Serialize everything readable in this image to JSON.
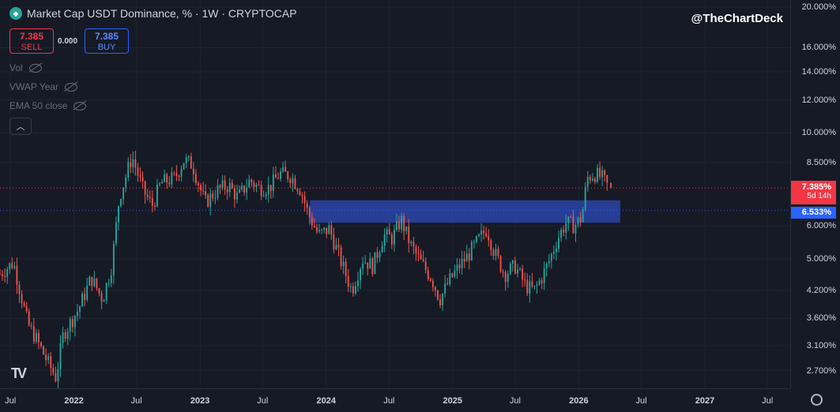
{
  "header": {
    "title": "Market Cap USDT Dominance, % · 1W · CRYPTOCAP",
    "symbol_icon": "diamond-icon"
  },
  "trade": {
    "sell_price": "7.385",
    "sell_label": "SELL",
    "spread": "0.000",
    "buy_price": "7.385",
    "buy_label": "BUY"
  },
  "indicators": [
    {
      "label": "Vol",
      "icon": "eye-off-icon"
    },
    {
      "label": "VWAP Year",
      "icon": "eye-off-icon"
    },
    {
      "label": "EMA 50 close",
      "icon": "eye-off-icon"
    }
  ],
  "watermark": "@TheChartDeck",
  "branding": "TV",
  "price_axis": {
    "current_price": "7.385%",
    "countdown": "5d 14h",
    "line_price": "6.533%"
  },
  "colors": {
    "up": "#26a69a",
    "down": "#ef5350",
    "zone": "#2a45a8",
    "current_price": "#f23645",
    "line_price": "#2962ff",
    "background": "#161a25"
  },
  "chart_data": {
    "type": "candlestick",
    "scale": "log",
    "ylim": [
      2.45,
      20.8
    ],
    "xlim": [
      "2021-06-01",
      "2027-09-05"
    ],
    "yticks": [
      "2.700%",
      "3.100%",
      "3.600%",
      "4.200%",
      "5.000%",
      "6.000%",
      "8.500%",
      "10.000%",
      "12.000%",
      "14.000%",
      "16.000%",
      "20.000%"
    ],
    "ytick_values": [
      2.7,
      3.1,
      3.6,
      4.2,
      5.0,
      6.0,
      8.5,
      10.0,
      12.0,
      14.0,
      16.0,
      20.0
    ],
    "xticks": [
      {
        "label": "Jul",
        "date": "2021-07-01",
        "year": false
      },
      {
        "label": "2022",
        "date": "2022-01-01",
        "year": true
      },
      {
        "label": "Jul",
        "date": "2022-07-01",
        "year": false
      },
      {
        "label": "2023",
        "date": "2023-01-01",
        "year": true
      },
      {
        "label": "Jul",
        "date": "2023-07-01",
        "year": false
      },
      {
        "label": "2024",
        "date": "2024-01-01",
        "year": true
      },
      {
        "label": "Jul",
        "date": "2024-07-01",
        "year": false
      },
      {
        "label": "2025",
        "date": "2025-01-01",
        "year": true
      },
      {
        "label": "Jul",
        "date": "2025-07-01",
        "year": false
      },
      {
        "label": "2026",
        "date": "2026-01-01",
        "year": true
      },
      {
        "label": "Jul",
        "date": "2026-07-01",
        "year": false
      },
      {
        "label": "2027",
        "date": "2027-01-01",
        "year": true
      },
      {
        "label": "Jul",
        "date": "2027-07-01",
        "year": false
      }
    ],
    "close_path": [
      [
        "2021-06-01",
        4.6
      ],
      [
        "2021-07-10",
        4.9
      ],
      [
        "2021-08-20",
        3.5
      ],
      [
        "2021-09-15",
        3.2
      ],
      [
        "2021-10-20",
        2.8
      ],
      [
        "2021-11-10",
        2.6
      ],
      [
        "2021-12-01",
        3.3
      ],
      [
        "2022-01-15",
        3.8
      ],
      [
        "2022-02-20",
        4.5
      ],
      [
        "2022-03-25",
        4.0
      ],
      [
        "2022-04-20",
        4.8
      ],
      [
        "2022-05-12",
        7.0
      ],
      [
        "2022-06-18",
        8.8
      ],
      [
        "2022-07-20",
        7.3
      ],
      [
        "2022-08-15",
        6.7
      ],
      [
        "2022-09-10",
        7.6
      ],
      [
        "2022-10-20",
        7.8
      ],
      [
        "2022-11-15",
        8.6
      ],
      [
        "2022-12-10",
        8.4
      ],
      [
        "2023-01-15",
        6.8
      ],
      [
        "2023-02-20",
        7.3
      ],
      [
        "2023-03-25",
        7.5
      ],
      [
        "2023-04-20",
        7.0
      ],
      [
        "2023-05-25",
        7.7
      ],
      [
        "2023-06-20",
        7.4
      ],
      [
        "2023-07-20",
        7.4
      ],
      [
        "2023-08-20",
        8.0
      ],
      [
        "2023-09-20",
        7.9
      ],
      [
        "2023-10-20",
        7.3
      ],
      [
        "2023-11-10",
        6.4
      ],
      [
        "2023-12-10",
        5.7
      ],
      [
        "2024-01-10",
        5.9
      ],
      [
        "2024-02-10",
        5.0
      ],
      [
        "2024-03-15",
        4.2
      ],
      [
        "2024-04-15",
        5.0
      ],
      [
        "2024-05-15",
        4.8
      ],
      [
        "2024-06-15",
        5.7
      ],
      [
        "2024-07-10",
        5.6
      ],
      [
        "2024-08-05",
        6.2
      ],
      [
        "2024-09-01",
        5.4
      ],
      [
        "2024-10-01",
        4.9
      ],
      [
        "2024-11-01",
        4.5
      ],
      [
        "2024-11-25",
        4.0
      ],
      [
        "2024-12-20",
        4.4
      ],
      [
        "2025-01-20",
        4.8
      ],
      [
        "2025-02-15",
        5.1
      ],
      [
        "2025-03-20",
        5.6
      ],
      [
        "2025-04-10",
        5.9
      ],
      [
        "2025-05-01",
        5.2
      ],
      [
        "2025-06-01",
        4.6
      ],
      [
        "2025-07-01",
        4.8
      ],
      [
        "2025-08-01",
        4.3
      ],
      [
        "2025-08-25",
        4.2
      ],
      [
        "2025-09-15",
        4.5
      ],
      [
        "2025-10-10",
        5.0
      ],
      [
        "2025-11-01",
        5.6
      ],
      [
        "2025-11-25",
        6.1
      ],
      [
        "2025-12-20",
        6.0
      ],
      [
        "2026-01-10",
        6.3
      ],
      [
        "2026-01-25",
        7.8
      ],
      [
        "2026-02-15",
        8.0
      ],
      [
        "2026-03-10",
        7.8
      ],
      [
        "2026-03-28",
        7.4
      ]
    ],
    "current_price": 7.385,
    "horizontal_line": 6.533,
    "zone": {
      "from": "2023-11-15",
      "to": "2026-05-01",
      "low": 6.1,
      "high": 6.9
    }
  }
}
